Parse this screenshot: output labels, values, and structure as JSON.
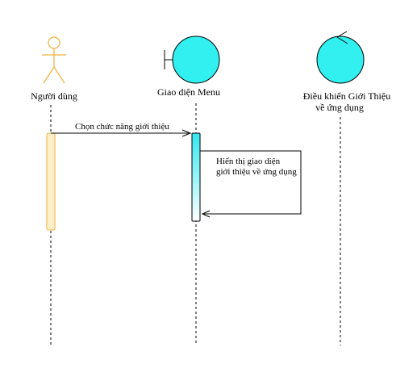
{
  "diagram": {
    "type": "sequence",
    "participants": [
      {
        "id": "actor",
        "kind": "actor",
        "label": "Người dùng"
      },
      {
        "id": "boundary",
        "kind": "boundary",
        "label": "Giao diện Menu"
      },
      {
        "id": "control",
        "kind": "control",
        "label_line1": "Điều  khiển Giới Thiệu",
        "label_line2": "về ứng dụng"
      }
    ],
    "messages": [
      {
        "from": "actor",
        "to": "boundary",
        "label": "Chọn chức năng giới thiệu"
      },
      {
        "from": "boundary",
        "to": "boundary",
        "kind": "self",
        "label_line1": "Hiển thị giao diện",
        "label_line2": "giới thiệu về ứng dụng"
      }
    ],
    "colors": {
      "actor": "#f0b040",
      "actor_activation": "#fdf0c8",
      "boundary_fill": "#33f0f0",
      "activation_top": "#33e8f0",
      "line": "#000000"
    }
  }
}
